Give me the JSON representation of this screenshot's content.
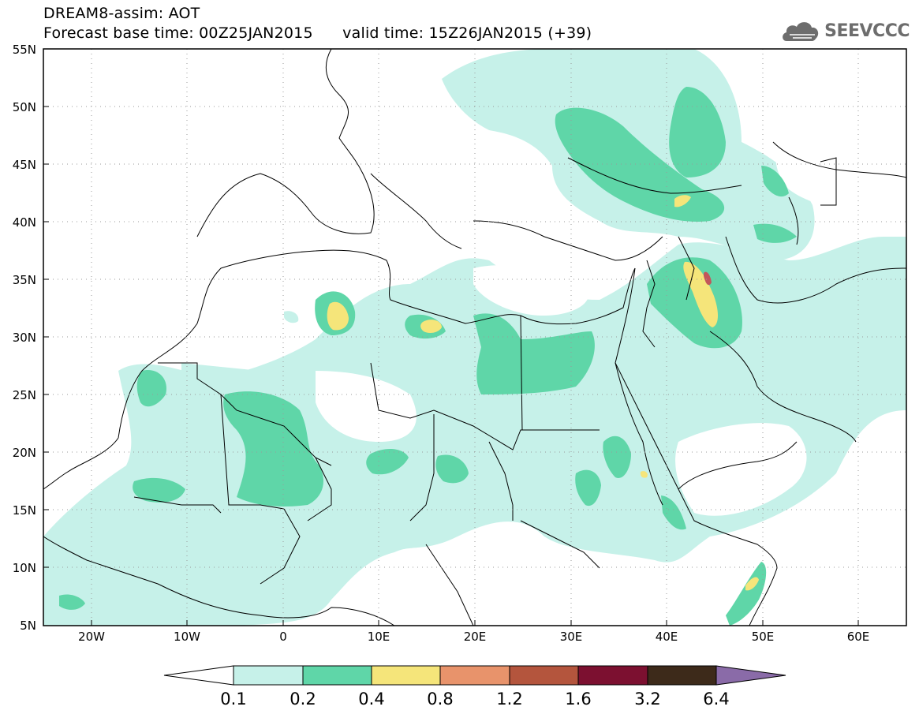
{
  "header": {
    "line1": "DREAM8-assim: AOT",
    "line2": "Forecast base time: 00Z25JAN2015      valid time: 15Z26JAN2015 (+39)"
  },
  "logo": {
    "text": "SEEVCCC",
    "icon": "cloud-icon"
  },
  "map": {
    "lon_range": [
      -25,
      65
    ],
    "lat_range": [
      5,
      55
    ],
    "lat_labels": [
      "55N",
      "50N",
      "45N",
      "40N",
      "35N",
      "30N",
      "25N",
      "20N",
      "15N",
      "10N",
      "5N"
    ],
    "lon_labels": [
      "20W",
      "10W",
      "0",
      "10E",
      "20E",
      "30E",
      "40E",
      "50E",
      "60E"
    ],
    "grid": "dotted"
  },
  "colorbar": {
    "ticks": [
      "0.1",
      "0.2",
      "0.4",
      "0.8",
      "1.2",
      "1.6",
      "3.2",
      "6.4"
    ],
    "colors": [
      "#ffffff",
      "#c6f1e9",
      "#5fd6a8",
      "#f5e57a",
      "#e8936b",
      "#b4553d",
      "#7c1030",
      "#3d2a1a",
      "#8a6ba8"
    ]
  }
}
